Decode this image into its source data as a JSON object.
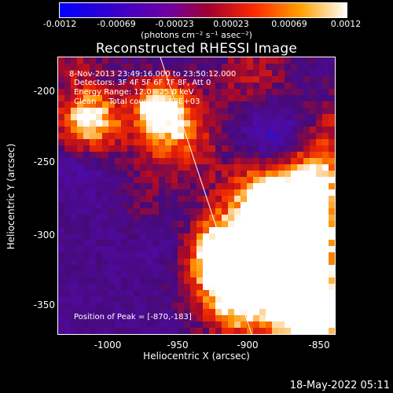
{
  "colorbar": {
    "ticks": [
      "-0.0012",
      "-0.00069",
      "-0.00023",
      "0.00023",
      "0.00069",
      "0.0012"
    ],
    "units": "(photons cm⁻² s⁻¹ asec⁻²)"
  },
  "title": "Reconstructed RHESSI Image",
  "annotations": {
    "time": "8-Nov-2013 23:49:16.000 to 23:50:12.000",
    "detectors": "Detectors: 3F 4F 5F 6F 7F 8F, Att 0",
    "energy": "Energy Range: 12.0 - 25.0 keV",
    "clean": "Clean     Total counts: 1.88E+03",
    "peak": "Position of Peak = [-870,-183]"
  },
  "axes": {
    "xlabel": "Heliocentric X (arcsec)",
    "ylabel": "Heliocentric Y (arcsec)",
    "xticks": [
      "-1000",
      "-950",
      "-900",
      "-850"
    ],
    "yticks": [
      "-200",
      "-250",
      "-300",
      "-350"
    ]
  },
  "footer": "18-May-2022 05:11"
}
